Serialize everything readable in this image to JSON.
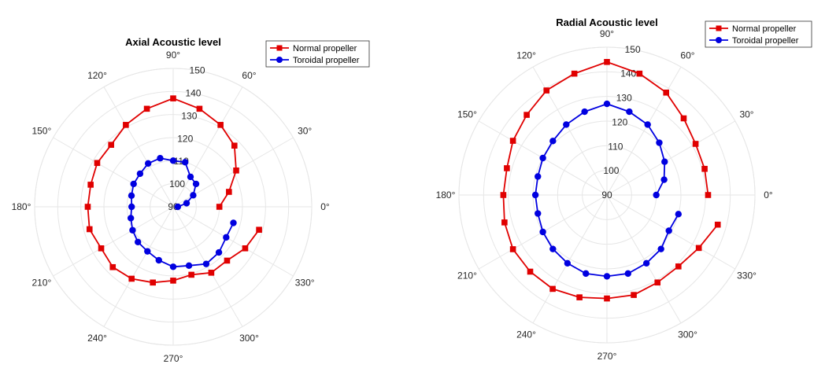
{
  "chart_data": [
    {
      "type": "polar-line",
      "title": "Axial Acoustic level",
      "angle_unit": "degrees",
      "angle_ticks": [
        0,
        30,
        60,
        90,
        120,
        150,
        180,
        210,
        240,
        270,
        300,
        330
      ],
      "angle_tick_labels": [
        "0°",
        "30°",
        "60°",
        "90°",
        "120°",
        "150°",
        "180°",
        "210°",
        "240°",
        "270°",
        "300°",
        "330°"
      ],
      "r_range": [
        90,
        150
      ],
      "r_ticks": [
        90,
        100,
        110,
        120,
        130,
        140,
        150
      ],
      "r_tick_labels": [
        "90",
        "100",
        "110",
        "120",
        "130",
        "140",
        "150"
      ],
      "grid": true,
      "legend_position": "top-right",
      "series": [
        {
          "name": "Normal propeller",
          "color": "#e00000",
          "marker": "square",
          "theta": [
            0,
            15,
            30,
            45,
            60,
            75,
            90,
            105,
            120,
            135,
            150,
            165,
            180,
            195,
            210,
            225,
            240,
            255,
            270,
            285,
            300,
            315,
            330,
            345
          ],
          "r": [
            110,
            115,
            121.5,
            127.5,
            131,
            134,
            137,
            134,
            131,
            128,
            128,
            127,
            127,
            127.5,
            126,
            127,
            126,
            124,
            122,
            120.5,
            123,
            123,
            126,
            128.5
          ]
        },
        {
          "name": "Toroidal propeller",
          "color": "#0000e0",
          "marker": "circle",
          "theta": [
            0,
            15,
            30,
            45,
            60,
            75,
            90,
            105,
            120,
            135,
            150,
            165,
            180,
            195,
            210,
            225,
            240,
            255,
            270,
            285,
            300,
            315,
            330,
            345
          ],
          "r": [
            92,
            96,
            100,
            104,
            105,
            110,
            110,
            111.8,
            111.7,
            110.3,
            109.8,
            108.7,
            108,
            109,
            110.3,
            111.6,
            112.3,
            114,
            116,
            116.4,
            118.6,
            118,
            116.5,
            117
          ]
        }
      ]
    },
    {
      "type": "polar-line",
      "title": "Radial Acoustic level",
      "angle_unit": "degrees",
      "angle_ticks": [
        0,
        30,
        60,
        90,
        120,
        150,
        180,
        210,
        240,
        270,
        300,
        330
      ],
      "angle_tick_labels": [
        "0°",
        "30°",
        "60°",
        "90°",
        "120°",
        "150°",
        "180°",
        "210°",
        "240°",
        "270°",
        "300°",
        "330°"
      ],
      "r_range": [
        90,
        150
      ],
      "r_ticks": [
        90,
        100,
        110,
        120,
        130,
        140,
        150
      ],
      "r_tick_labels": [
        "90",
        "100",
        "110",
        "120",
        "130",
        "140",
        "150"
      ],
      "grid": true,
      "legend_position": "top-right",
      "series": [
        {
          "name": "Normal propeller",
          "color": "#e00000",
          "marker": "square",
          "theta": [
            0,
            15,
            30,
            45,
            60,
            75,
            90,
            105,
            120,
            135,
            150,
            165,
            180,
            195,
            210,
            225,
            240,
            255,
            270,
            285,
            300,
            315,
            330,
            345
          ],
          "r": [
            131,
            131,
            131.5,
            134,
            138,
            141,
            144,
            141,
            139,
            136,
            134,
            132,
            132,
            133,
            134,
            134,
            134,
            133,
            132,
            132,
            131,
            131,
            133,
            136.5
          ]
        },
        {
          "name": "Toroidal propeller",
          "color": "#0000e0",
          "marker": "circle",
          "theta": [
            0,
            15,
            30,
            45,
            60,
            75,
            90,
            105,
            120,
            135,
            150,
            165,
            180,
            195,
            210,
            225,
            240,
            255,
            270,
            285,
            300,
            315,
            330,
            345
          ],
          "r": [
            110,
            114,
            117,
            120,
            123,
            125,
            127,
            125,
            123,
            121,
            120,
            119,
            119,
            119,
            120,
            121,
            122,
            123,
            123,
            123,
            122,
            121,
            119,
            120
          ]
        }
      ]
    }
  ]
}
